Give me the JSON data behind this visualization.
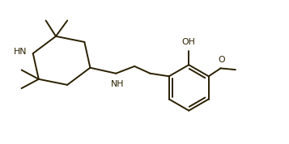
{
  "bg_color": "#ffffff",
  "line_color": "#2a2000",
  "line_width": 1.4,
  "figsize": [
    3.57,
    1.78
  ],
  "dpi": 100,
  "xlim": [
    0,
    10
  ],
  "ylim": [
    0,
    5
  ],
  "NH_ring": "HN",
  "NH_linker": "NH",
  "OH_label": "OH",
  "O_label": "O",
  "text_fs": 7.8
}
